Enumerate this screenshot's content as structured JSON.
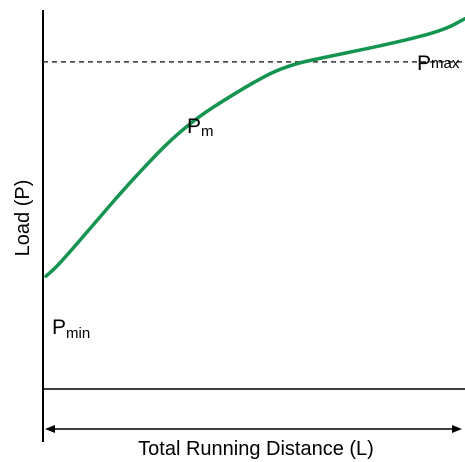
{
  "chart_data": {
    "type": "line",
    "title": "",
    "xlabel": "Total Running Distance (L)",
    "ylabel": "Load (P)",
    "grid": false,
    "legend": "none",
    "series": [
      {
        "x": [
          0,
          0.03,
          0.1,
          0.2,
          0.33,
          0.47,
          0.57,
          0.7,
          0.85,
          0.95,
          1.0
        ],
        "y": [
          0.3,
          0.33,
          0.42,
          0.55,
          0.7,
          0.8,
          0.86,
          0.89,
          0.925,
          0.955,
          0.985
        ]
      }
    ],
    "reference_line": {
      "y": 0.87,
      "style": "dashed"
    },
    "annotations": [
      {
        "base": "P",
        "sub": "min"
      },
      {
        "base": "P",
        "sub": "m"
      },
      {
        "base": "P",
        "sub": "max"
      }
    ],
    "colors": {
      "line": "#159450",
      "axis": "#000000"
    }
  }
}
